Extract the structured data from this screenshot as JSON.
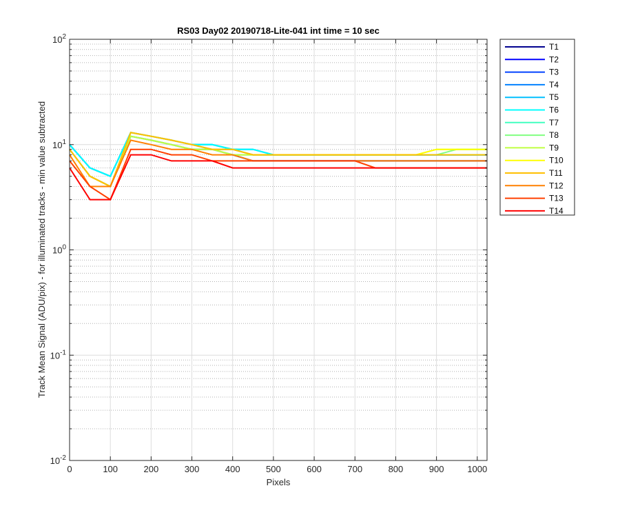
{
  "chart_data": {
    "type": "line",
    "title": "RS03 Day02 20190718-Lite-041 int time = 10 sec",
    "xlabel": "Pixels",
    "ylabel": "Track Mean Signal (ADU/pix) - for illuminated tracks - min value subtracted",
    "xlim": [
      0,
      1024
    ],
    "ylim": [
      0.01,
      100
    ],
    "yscale": "log",
    "grid": "major and minor (dotted)",
    "legend_position": "outside-top-right",
    "x_ticks": [
      "0",
      "100",
      "200",
      "300",
      "400",
      "500",
      "600",
      "700",
      "800",
      "900",
      "1000"
    ],
    "y_ticks": [
      {
        "base": "10",
        "exp": "-2"
      },
      {
        "base": "10",
        "exp": "-1"
      },
      {
        "base": "10",
        "exp": "0"
      },
      {
        "base": "10",
        "exp": "1"
      },
      {
        "base": "10",
        "exp": "2"
      }
    ],
    "series": [
      {
        "name": "T1",
        "color": "#00008f",
        "x": [
          0,
          50,
          100,
          150,
          200,
          250,
          300,
          350,
          400,
          450,
          500,
          550,
          600,
          650,
          700,
          750,
          800,
          850,
          900,
          950,
          1024
        ],
        "values": [
          9,
          5,
          4,
          12,
          11,
          10,
          9,
          9,
          8,
          7,
          7,
          7,
          7,
          7,
          7,
          7,
          7,
          7,
          7,
          7,
          7
        ]
      },
      {
        "name": "T2",
        "color": "#0000ff",
        "x": [
          0,
          50,
          100,
          150,
          200,
          250,
          300,
          350,
          400,
          450,
          500,
          550,
          600,
          650,
          700,
          750,
          800,
          850,
          900,
          950,
          1024
        ],
        "values": [
          9,
          5,
          4,
          12,
          11,
          10,
          9,
          9,
          8,
          7,
          7,
          7,
          7,
          7,
          7,
          7,
          7,
          7,
          7,
          7,
          7
        ]
      },
      {
        "name": "T3",
        "color": "#0040ff",
        "x": [
          0,
          50,
          100,
          150,
          200,
          250,
          300,
          350,
          400,
          450,
          500,
          550,
          600,
          650,
          700,
          750,
          800,
          850,
          900,
          950,
          1024
        ],
        "values": [
          10,
          6,
          5,
          13,
          12,
          11,
          10,
          9,
          9,
          8,
          8,
          8,
          8,
          8,
          8,
          8,
          8,
          8,
          8,
          8,
          8
        ]
      },
      {
        "name": "T4",
        "color": "#0080ff",
        "x": [
          0,
          50,
          100,
          150,
          200,
          250,
          300,
          350,
          400,
          450,
          500,
          550,
          600,
          650,
          700,
          750,
          800,
          850,
          900,
          950,
          1024
        ],
        "values": [
          10,
          6,
          5,
          13,
          12,
          11,
          10,
          10,
          9,
          9,
          8,
          8,
          8,
          8,
          8,
          8,
          8,
          8,
          8,
          8,
          8
        ]
      },
      {
        "name": "T5",
        "color": "#00bfff",
        "x": [
          0,
          50,
          100,
          150,
          200,
          250,
          300,
          350,
          400,
          450,
          500,
          550,
          600,
          650,
          700,
          750,
          800,
          850,
          900,
          950,
          1024
        ],
        "values": [
          10,
          6,
          5,
          13,
          12,
          11,
          10,
          10,
          9,
          9,
          8,
          8,
          8,
          8,
          8,
          8,
          8,
          8,
          8,
          8,
          8
        ]
      },
      {
        "name": "T6",
        "color": "#00ffff",
        "x": [
          0,
          50,
          100,
          150,
          200,
          250,
          300,
          350,
          400,
          450,
          500,
          550,
          600,
          650,
          700,
          750,
          800,
          850,
          900,
          950,
          1024
        ],
        "values": [
          10,
          6,
          5,
          13,
          12,
          11,
          10,
          10,
          9,
          9,
          8,
          8,
          8,
          8,
          8,
          8,
          8,
          8,
          8,
          8,
          8
        ]
      },
      {
        "name": "T7",
        "color": "#40ffbf",
        "x": [
          0,
          50,
          100,
          150,
          200,
          250,
          300,
          350,
          400,
          450,
          500,
          550,
          600,
          650,
          700,
          750,
          800,
          850,
          900,
          950,
          1024
        ],
        "values": [
          9,
          5,
          4,
          12,
          11,
          10,
          9,
          9,
          8,
          8,
          8,
          8,
          8,
          8,
          8,
          8,
          8,
          8,
          8,
          8,
          8
        ]
      },
      {
        "name": "T8",
        "color": "#80ff80",
        "x": [
          0,
          50,
          100,
          150,
          200,
          250,
          300,
          350,
          400,
          450,
          500,
          550,
          600,
          650,
          700,
          750,
          800,
          850,
          900,
          950,
          1024
        ],
        "values": [
          9,
          5,
          4,
          12,
          11,
          10,
          9,
          9,
          8,
          8,
          8,
          8,
          8,
          8,
          8,
          8,
          8,
          8,
          8,
          9,
          9
        ]
      },
      {
        "name": "T9",
        "color": "#bfff40",
        "x": [
          0,
          50,
          100,
          150,
          200,
          250,
          300,
          350,
          400,
          450,
          500,
          550,
          600,
          650,
          700,
          750,
          800,
          850,
          900,
          950,
          1024
        ],
        "values": [
          9,
          5,
          4,
          12,
          11,
          10,
          9,
          9,
          8,
          8,
          8,
          8,
          8,
          8,
          8,
          8,
          8,
          8,
          9,
          9,
          9
        ]
      },
      {
        "name": "T10",
        "color": "#ffff00",
        "x": [
          0,
          50,
          100,
          150,
          200,
          250,
          300,
          350,
          400,
          450,
          500,
          550,
          600,
          650,
          700,
          750,
          800,
          850,
          900,
          950,
          1024
        ],
        "values": [
          9,
          5,
          4,
          13,
          12,
          11,
          10,
          9,
          9,
          8,
          8,
          8,
          8,
          8,
          8,
          8,
          8,
          8,
          9,
          9,
          9
        ]
      },
      {
        "name": "T11",
        "color": "#ffbf00",
        "x": [
          0,
          50,
          100,
          150,
          200,
          250,
          300,
          350,
          400,
          450,
          500,
          550,
          600,
          650,
          700,
          750,
          800,
          850,
          900,
          950,
          1024
        ],
        "values": [
          9,
          5,
          4,
          13,
          12,
          11,
          10,
          9,
          9,
          8,
          8,
          8,
          8,
          8,
          8,
          8,
          8,
          8,
          8,
          8,
          8
        ]
      },
      {
        "name": "T12",
        "color": "#ff8000",
        "x": [
          0,
          50,
          100,
          150,
          200,
          250,
          300,
          350,
          400,
          450,
          500,
          550,
          600,
          650,
          700,
          750,
          800,
          850,
          900,
          950,
          1024
        ],
        "values": [
          8,
          4,
          4,
          11,
          10,
          9,
          9,
          8,
          8,
          7,
          7,
          7,
          7,
          7,
          7,
          7,
          7,
          7,
          7,
          7,
          7
        ]
      },
      {
        "name": "T13",
        "color": "#ff4000",
        "x": [
          0,
          50,
          100,
          150,
          200,
          250,
          300,
          350,
          400,
          450,
          500,
          550,
          600,
          650,
          700,
          750,
          800,
          850,
          900,
          950,
          1024
        ],
        "values": [
          7,
          4,
          3,
          9,
          9,
          8,
          8,
          7,
          7,
          7,
          7,
          7,
          7,
          7,
          7,
          6,
          6,
          6,
          6,
          6,
          6
        ]
      },
      {
        "name": "T14",
        "color": "#ff0000",
        "x": [
          0,
          50,
          100,
          150,
          200,
          250,
          300,
          350,
          400,
          450,
          500,
          550,
          600,
          650,
          700,
          750,
          800,
          850,
          900,
          950,
          1024
        ],
        "values": [
          6,
          3,
          3,
          8,
          8,
          7,
          7,
          7,
          6,
          6,
          6,
          6,
          6,
          6,
          6,
          6,
          6,
          6,
          6,
          6,
          6
        ]
      }
    ]
  }
}
